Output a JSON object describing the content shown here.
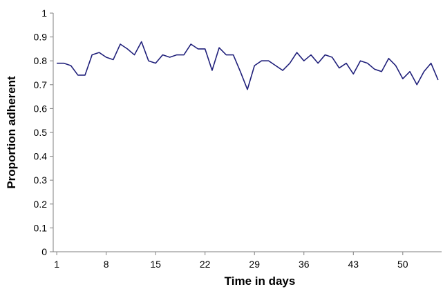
{
  "chart_data": {
    "type": "line",
    "title": "",
    "xlabel": "Time in days",
    "ylabel": "Proportion adherent",
    "xlim": [
      0.5,
      55.5
    ],
    "ylim": [
      0,
      1
    ],
    "x_ticks": [
      1,
      8,
      15,
      22,
      29,
      36,
      43,
      50
    ],
    "y_ticks": [
      0,
      0.1,
      0.2,
      0.3,
      0.4,
      0.5,
      0.6,
      0.7,
      0.8,
      0.9,
      1
    ],
    "y_tick_labels": [
      "0",
      "0.1",
      "0.2",
      "0.3",
      "0.4",
      "0.5",
      "0.6",
      "0.7",
      "0.8",
      "0.9",
      "1"
    ],
    "grid": false,
    "legend": "none",
    "series": [
      {
        "color": "#1f1f7a",
        "x": [
          1,
          2,
          3,
          4,
          5,
          6,
          7,
          8,
          9,
          10,
          11,
          12,
          13,
          14,
          15,
          16,
          17,
          18,
          19,
          20,
          21,
          22,
          23,
          24,
          25,
          26,
          27,
          28,
          29,
          30,
          31,
          32,
          33,
          34,
          35,
          36,
          37,
          38,
          39,
          40,
          41,
          42,
          43,
          44,
          45,
          46,
          47,
          48,
          49,
          50,
          51,
          52,
          53,
          54,
          55
        ],
        "values": [
          0.79,
          0.79,
          0.78,
          0.74,
          0.74,
          0.825,
          0.835,
          0.815,
          0.805,
          0.87,
          0.85,
          0.825,
          0.88,
          0.8,
          0.79,
          0.825,
          0.815,
          0.825,
          0.825,
          0.87,
          0.85,
          0.85,
          0.76,
          0.855,
          0.825,
          0.825,
          0.755,
          0.68,
          0.78,
          0.8,
          0.8,
          0.78,
          0.76,
          0.79,
          0.835,
          0.8,
          0.825,
          0.79,
          0.825,
          0.815,
          0.77,
          0.79,
          0.745,
          0.8,
          0.79,
          0.765,
          0.755,
          0.81,
          0.78,
          0.725,
          0.755,
          0.7,
          0.755,
          0.79,
          0.72
        ]
      }
    ]
  }
}
